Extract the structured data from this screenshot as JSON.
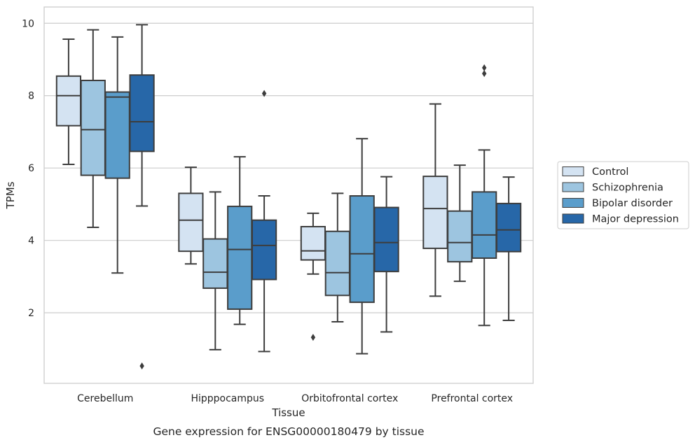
{
  "chart_data": {
    "type": "boxplot",
    "title": "",
    "caption": "Gene expression for ENSG00000180479 by tissue",
    "xlabel": "Tissue",
    "ylabel": "TPMs",
    "ylim": [
      0.05,
      10.45
    ],
    "yticks": [
      2,
      4,
      6,
      8,
      10
    ],
    "grid": "horizontal",
    "legend_position": "right",
    "categories": [
      "Cerebellum",
      "Hipppocampus",
      "Orbitofrontal cortex",
      "Prefrontal cortex"
    ],
    "series": [
      {
        "name": "Control",
        "color": "#d4e3f2",
        "boxes": [
          {
            "whislo": 6.1,
            "q1": 7.17,
            "med": 8.0,
            "q3": 8.54,
            "whishi": 9.56,
            "fliers": []
          },
          {
            "whislo": 3.35,
            "q1": 3.7,
            "med": 4.56,
            "q3": 5.3,
            "whishi": 6.02,
            "fliers": []
          },
          {
            "whislo": 3.07,
            "q1": 3.46,
            "med": 3.71,
            "q3": 4.38,
            "whishi": 4.75,
            "fliers": [
              1.32
            ]
          },
          {
            "whislo": 2.46,
            "q1": 3.78,
            "med": 4.88,
            "q3": 5.77,
            "whishi": 7.77,
            "fliers": []
          }
        ]
      },
      {
        "name": "Schizophrenia",
        "color": "#9dc5e0",
        "boxes": [
          {
            "whislo": 4.36,
            "q1": 5.8,
            "med": 7.06,
            "q3": 8.42,
            "whishi": 9.82,
            "fliers": []
          },
          {
            "whislo": 0.98,
            "q1": 2.68,
            "med": 3.12,
            "q3": 4.04,
            "whishi": 5.34,
            "fliers": []
          },
          {
            "whislo": 1.75,
            "q1": 2.48,
            "med": 3.11,
            "q3": 4.25,
            "whishi": 5.3,
            "fliers": []
          },
          {
            "whislo": 2.87,
            "q1": 3.41,
            "med": 3.94,
            "q3": 4.81,
            "whishi": 6.08,
            "fliers": []
          }
        ]
      },
      {
        "name": "Bipolar disorder",
        "color": "#5a9dcb",
        "boxes": [
          {
            "whislo": 3.1,
            "q1": 5.72,
            "med": 7.96,
            "q3": 8.1,
            "whishi": 9.62,
            "fliers": []
          },
          {
            "whislo": 1.68,
            "q1": 2.1,
            "med": 3.75,
            "q3": 4.94,
            "whishi": 6.31,
            "fliers": []
          },
          {
            "whislo": 0.87,
            "q1": 2.29,
            "med": 3.63,
            "q3": 5.23,
            "whishi": 6.81,
            "fliers": []
          },
          {
            "whislo": 1.65,
            "q1": 3.51,
            "med": 4.15,
            "q3": 5.34,
            "whishi": 6.5,
            "fliers": [
              8.61,
              8.77
            ]
          }
        ]
      },
      {
        "name": "Major depression",
        "color": "#2767a8",
        "boxes": [
          {
            "whislo": 4.95,
            "q1": 6.46,
            "med": 7.28,
            "q3": 8.57,
            "whishi": 9.96,
            "fliers": [
              0.53
            ]
          },
          {
            "whislo": 0.93,
            "q1": 2.92,
            "med": 3.86,
            "q3": 4.56,
            "whishi": 5.23,
            "fliers": [
              8.06
            ]
          },
          {
            "whislo": 1.47,
            "q1": 3.14,
            "med": 3.94,
            "q3": 4.91,
            "whishi": 5.76,
            "fliers": []
          },
          {
            "whislo": 1.79,
            "q1": 3.69,
            "med": 4.29,
            "q3": 5.02,
            "whishi": 5.75,
            "fliers": []
          }
        ]
      }
    ]
  }
}
